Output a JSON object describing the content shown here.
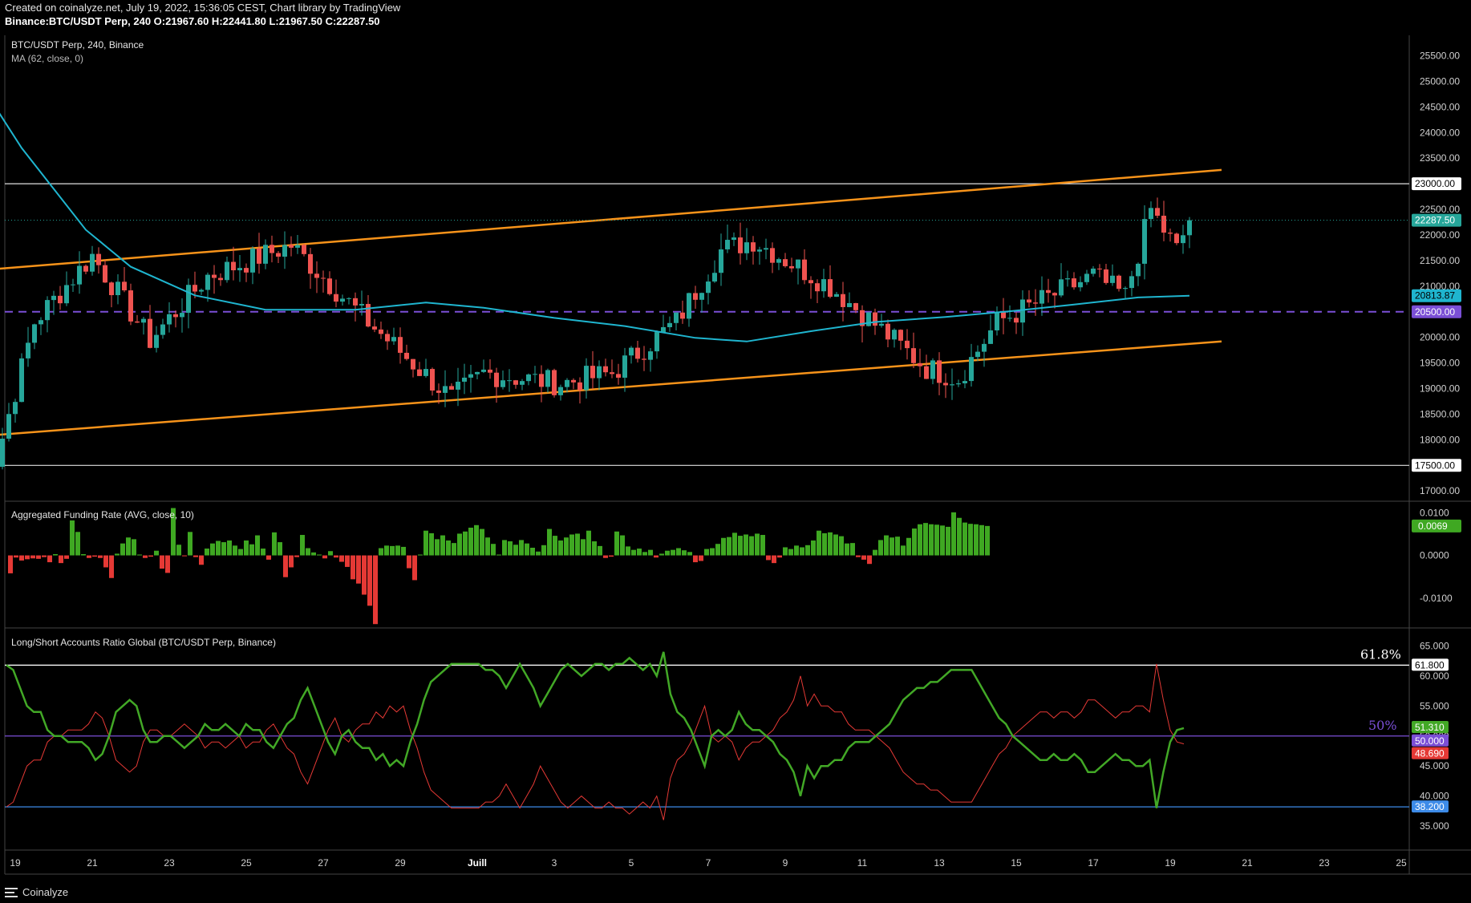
{
  "header": {
    "line1": "Created on coinalyze.net, July 19, 2022, 15:36:05 CEST, Chart library by TradingView",
    "line2": "Binance:BTC/USDT Perp, 240 O:21967.60 H:22441.80 L:21967.50 C:22287.50"
  },
  "footer": {
    "brand": "Coinalyze"
  },
  "colors": {
    "up": "#26a69a",
    "down": "#ef5350",
    "ma": "#1fb5cf",
    "channel": "#f7931a",
    "level": "#e0e0e0",
    "purple": "#7b4fd6",
    "funding_up": "#3fa822",
    "funding_down": "#e53935",
    "long_line": "#42a826",
    "short_line": "#e53935",
    "fib_382": "#3d8be8"
  },
  "chart_data": [
    {
      "type": "candlestick",
      "title": "BTC/USDT Perp, 240, Binance",
      "indicator": "MA (62, close, 0)",
      "ylim": [
        16800,
        25900
      ],
      "y_ticks": [
        "25500.00",
        "25000.00",
        "24500.00",
        "24000.00",
        "23500.00",
        "23000.00",
        "22500.00",
        "22000.00",
        "21500.00",
        "21000.00",
        "20500.00",
        "20000.00",
        "19500.00",
        "19000.00",
        "18500.00",
        "18000.00",
        "17500.00",
        "17000.00"
      ],
      "x_labels": [
        "19",
        "21",
        "23",
        "25",
        "27",
        "29",
        "Juill",
        "3",
        "5",
        "7",
        "9",
        "11",
        "13",
        "15",
        "17",
        "19",
        "21",
        "23",
        "25"
      ],
      "price_labels": [
        {
          "value": 23000,
          "text": "23000.00",
          "color": "#ffffff",
          "text_color": "#000000"
        },
        {
          "value": 22287.5,
          "text": "22287.50",
          "color": "#26a69a",
          "text_color": "#ffffff"
        },
        {
          "value": 20813.87,
          "text": "20813.87",
          "color": "#1fb5cf",
          "text_color": "#000000"
        },
        {
          "value": 20500,
          "text": "20500.00",
          "color": "#7b4fd6",
          "text_color": "#ffffff"
        },
        {
          "value": 17500,
          "text": "17500.00",
          "color": "#ffffff",
          "text_color": "#000000"
        }
      ],
      "horizontal_levels": [
        23000,
        17500
      ],
      "dashed_level": 20500,
      "channel_upper": [
        {
          "date": "2022-06-18T06:00",
          "price": 21320
        },
        {
          "date": "2022-07-20T08:00",
          "price": 23270
        }
      ],
      "channel_lower": [
        {
          "date": "2022-06-18T06:00",
          "price": 18080
        },
        {
          "date": "2022-07-20T08:00",
          "price": 19920
        }
      ],
      "ma_points": [
        {
          "date": "2022-06-18T06:00",
          "price": 24770
        },
        {
          "date": "2022-06-19T04:00",
          "price": 23700
        },
        {
          "date": "2022-06-20T20:00",
          "price": 22100
        },
        {
          "date": "2022-06-22T00:00",
          "price": 21380
        },
        {
          "date": "2022-06-23T16:00",
          "price": 20820
        },
        {
          "date": "2022-06-25T12:00",
          "price": 20540
        },
        {
          "date": "2022-06-27T20:00",
          "price": 20540
        },
        {
          "date": "2022-06-29T16:00",
          "price": 20680
        },
        {
          "date": "2022-07-01T04:00",
          "price": 20580
        },
        {
          "date": "2022-07-03T00:00",
          "price": 20380
        },
        {
          "date": "2022-07-04T20:00",
          "price": 20220
        },
        {
          "date": "2022-07-06T16:00",
          "price": 19990
        },
        {
          "date": "2022-07-08T00:00",
          "price": 19920
        },
        {
          "date": "2022-07-09T16:00",
          "price": 20120
        },
        {
          "date": "2022-07-11T08:00",
          "price": 20300
        },
        {
          "date": "2022-07-13T04:00",
          "price": 20400
        },
        {
          "date": "2022-07-14T20:00",
          "price": 20510
        },
        {
          "date": "2022-07-16T12:00",
          "price": 20640
        },
        {
          "date": "2022-07-18T04:00",
          "price": 20780
        },
        {
          "date": "2022-07-19T12:00",
          "price": 20814
        }
      ],
      "ohlc_key_points": [
        {
          "date": "2022-06-18T00:00",
          "price": 20200
        },
        {
          "date": "2022-06-18T12:00",
          "price": 17600
        },
        {
          "date": "2022-06-19T12:00",
          "price": 20300
        },
        {
          "date": "2022-06-21T00:00",
          "price": 21600
        },
        {
          "date": "2022-06-22T12:00",
          "price": 19950
        },
        {
          "date": "2022-06-24T00:00",
          "price": 21200
        },
        {
          "date": "2022-06-26T04:00",
          "price": 21800
        },
        {
          "date": "2022-06-28T04:00",
          "price": 20300
        },
        {
          "date": "2022-06-30T08:00",
          "price": 18800
        },
        {
          "date": "2022-07-01T04:00",
          "price": 19300
        },
        {
          "date": "2022-07-03T04:00",
          "price": 19100
        },
        {
          "date": "2022-07-04T12:00",
          "price": 19300
        },
        {
          "date": "2022-07-06T04:00",
          "price": 20300
        },
        {
          "date": "2022-07-07T08:00",
          "price": 21700
        },
        {
          "date": "2022-07-08T04:00",
          "price": 21900
        },
        {
          "date": "2022-07-10T04:00",
          "price": 21000
        },
        {
          "date": "2022-07-12T16:00",
          "price": 19400
        },
        {
          "date": "2022-07-13T12:00",
          "price": 19200
        },
        {
          "date": "2022-07-14T12:00",
          "price": 20300
        },
        {
          "date": "2022-07-16T04:00",
          "price": 20900
        },
        {
          "date": "2022-07-17T00:00",
          "price": 21200
        },
        {
          "date": "2022-07-17T20:00",
          "price": 20800
        },
        {
          "date": "2022-07-18T12:00",
          "price": 22500
        },
        {
          "date": "2022-07-19T04:00",
          "price": 21700
        },
        {
          "date": "2022-07-19T12:00",
          "price": 22288
        }
      ]
    },
    {
      "type": "bar",
      "title": "Aggregated Funding Rate (AVG, close, 10)",
      "ylim": [
        -0.017,
        0.0127
      ],
      "y_ticks": [
        "0.0100",
        "0.0000",
        "-0.0100"
      ],
      "last_value_label": "0.0069",
      "values": [
        -0.0042,
        -0.0005,
        -0.0012,
        -0.0009,
        -0.0007,
        -0.0008,
        -0.0004,
        -0.0016,
        0.0003,
        -0.0018,
        -0.0008,
        0.0082,
        0.0055,
        0.0003,
        -0.0006,
        -0.0003,
        -0.0006,
        -0.0028,
        -0.0053,
        0.0004,
        0.0028,
        0.0042,
        0.0038,
        0.0002,
        -0.0006,
        -0.0003,
        0.0011,
        -0.0031,
        -0.0041,
        0.0111,
        0.0025,
        -0.0002,
        0.0055,
        -0.0004,
        -0.0022,
        0.0016,
        0.0028,
        0.0034,
        0.0031,
        0.0035,
        0.0023,
        0.0015,
        0.0035,
        0.0026,
        0.0047,
        0.0016,
        -0.001,
        0.0054,
        0.0031,
        -0.0051,
        -0.0028,
        -0.0004,
        0.0048,
        0.0017,
        0.0007,
        0.0002,
        -0.0007,
        0.001,
        -0.0005,
        -0.0015,
        -0.0027,
        -0.0056,
        -0.0066,
        -0.0092,
        -0.0118,
        -0.0161,
        0.0017,
        0.0023,
        0.0022,
        0.0023,
        0.002,
        -0.003,
        -0.0058,
        0.0002,
        0.0058,
        0.0052,
        0.0038,
        0.0047,
        0.0035,
        0.0029,
        0.0051,
        0.0056,
        0.0065,
        0.0071,
        0.0062,
        0.0042,
        0.0027,
        0.0002,
        0.0036,
        0.0033,
        0.0025,
        0.0036,
        0.0028,
        0.0018,
        0.0009,
        0.0024,
        0.0062,
        0.0046,
        0.0035,
        0.0042,
        0.0049,
        0.0051,
        0.0038,
        0.0058,
        0.0033,
        0.0022,
        -0.0006,
        -0.0003,
        0.0056,
        0.0047,
        0.0021,
        0.0013,
        0.0016,
        0.0008,
        0.0013,
        -0.0005,
        0.0004,
        0.0011,
        0.0013,
        0.0017,
        0.0012,
        0.0008,
        -0.0016,
        -0.0013,
        0.0015,
        0.0017,
        0.0027,
        0.0041,
        0.0043,
        0.0053,
        0.0046,
        0.0049,
        0.0045,
        0.0051,
        0.0048,
        -0.0011,
        -0.0018,
        -0.0005,
        0.0019,
        0.0015,
        0.0023,
        0.0019,
        0.0024,
        0.0035,
        0.0058,
        0.0052,
        0.0054,
        0.0049,
        0.0045,
        0.0028,
        0.0029,
        -0.0004,
        -0.001,
        -0.002,
        0.0013,
        0.0036,
        0.0047,
        0.0042,
        0.0044,
        0.0023,
        0.0041,
        0.0063,
        0.0073,
        0.0076,
        0.0073,
        0.0072,
        0.007,
        0.0067,
        0.0101,
        0.0088,
        0.0077,
        0.0074,
        0.0073,
        0.0071,
        0.0069
      ]
    },
    {
      "type": "line",
      "title": "Long/Short Accounts Ratio Global (BTC/USDT Perp, Binance)",
      "ylim": [
        31.0,
        68.0
      ],
      "y_ticks": [
        "65.000",
        "60.000",
        "55.000",
        "50.000",
        "45.000",
        "40.000",
        "35.000"
      ],
      "levels": [
        {
          "value": 61.8,
          "label": "61.8%",
          "tag": "61.800"
        },
        {
          "value": 50.0,
          "label": "50%",
          "tag": "50.000"
        },
        {
          "value": 38.2,
          "tag": "38.200"
        }
      ],
      "series": [
        {
          "last": "51.310",
          "values": [
            61.8,
            61,
            58,
            55,
            54,
            54,
            51,
            50,
            50,
            49,
            49,
            49,
            48,
            46,
            47,
            50,
            54,
            55,
            56,
            55,
            51,
            49,
            49,
            50,
            50,
            49,
            48,
            49,
            50,
            52,
            51,
            51,
            52,
            51,
            50,
            52,
            51,
            51,
            49,
            48,
            50,
            52,
            53,
            56,
            58,
            55,
            52,
            49,
            47,
            50,
            51,
            49,
            48,
            48,
            46,
            47,
            45,
            46,
            45,
            49,
            52,
            56,
            59,
            60,
            61,
            62,
            62,
            62,
            62,
            62,
            61,
            61,
            60,
            58,
            60,
            62,
            60,
            58,
            55,
            57,
            59,
            61,
            62,
            61,
            60,
            61,
            62,
            62,
            61,
            62,
            62,
            63,
            62,
            61,
            62,
            60,
            64,
            57,
            54,
            53,
            51,
            48,
            45,
            50,
            51,
            50,
            51,
            54,
            52,
            51,
            51,
            50,
            49,
            47,
            46,
            44,
            40,
            45,
            43,
            45,
            45,
            46,
            46,
            48,
            49,
            49,
            49,
            50,
            51,
            52,
            54,
            56,
            57,
            58,
            58,
            59,
            59,
            60,
            61,
            61,
            61,
            61,
            59,
            57,
            55,
            53,
            52,
            50,
            49,
            48,
            47,
            46,
            46,
            47,
            46,
            46,
            47,
            46,
            44,
            44,
            45,
            46,
            47,
            46,
            46,
            45,
            45,
            46,
            38,
            44,
            49,
            51,
            51.31
          ]
        },
        {
          "last": "48.690",
          "values": [
            38.2,
            39,
            42,
            45,
            46,
            46,
            49,
            50,
            50,
            51,
            51,
            51,
            52,
            54,
            53,
            50,
            46,
            45,
            44,
            45,
            49,
            51,
            51,
            50,
            50,
            51,
            52,
            51,
            50,
            48,
            49,
            49,
            48,
            49,
            50,
            48,
            49,
            49,
            51,
            52,
            50,
            48,
            47,
            44,
            42,
            45,
            48,
            51,
            53,
            50,
            49,
            51,
            52,
            52,
            54,
            53,
            55,
            54,
            55,
            51,
            48,
            44,
            41,
            40,
            39,
            38,
            38,
            38,
            38,
            38,
            39,
            39,
            40,
            42,
            40,
            38,
            40,
            42,
            45,
            43,
            41,
            39,
            38,
            39,
            40,
            39,
            38,
            38,
            39,
            38,
            38,
            37,
            38,
            39,
            38,
            40,
            36,
            43,
            46,
            47,
            49,
            52,
            55,
            50,
            49,
            50,
            49,
            46,
            48,
            49,
            49,
            50,
            51,
            53,
            54,
            56,
            60,
            55,
            57,
            55,
            55,
            54,
            54,
            52,
            51,
            51,
            51,
            50,
            49,
            48,
            46,
            44,
            43,
            42,
            42,
            41,
            41,
            40,
            39,
            39,
            39,
            39,
            41,
            43,
            45,
            47,
            48,
            50,
            51,
            52,
            53,
            54,
            54,
            53,
            54,
            54,
            53,
            54,
            56,
            56,
            55,
            54,
            53,
            54,
            54,
            55,
            55,
            54,
            62,
            56,
            51,
            49,
            48.69
          ]
        }
      ]
    }
  ]
}
